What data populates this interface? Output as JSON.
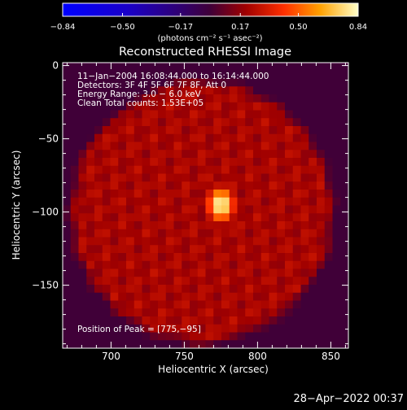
{
  "chart_data": {
    "type": "heatmap",
    "title": "Reconstructed RHESSI Image",
    "xlabel": "Heliocentric X (arcsec)",
    "ylabel": "Heliocentric Y (arcsec)",
    "xlim": [
      667,
      862
    ],
    "ylim": [
      -193,
      2
    ],
    "x_ticks": [
      700,
      750,
      800,
      850
    ],
    "y_ticks": [
      0,
      -50,
      -100,
      -150
    ],
    "x_tick_labels": [
      "700",
      "750",
      "800",
      "850"
    ],
    "y_tick_labels": [
      "0",
      "−50",
      "−100",
      "−150"
    ],
    "colorbar": {
      "range": [
        -0.84,
        0.84
      ],
      "ticks": [
        -0.84,
        -0.5,
        -0.17,
        0.17,
        0.5,
        0.84
      ],
      "tick_labels": [
        "−0.84",
        "−0.50",
        "−0.17",
        "0.17",
        "0.50",
        "0.84"
      ],
      "unit_label": "(photons cm⁻² s⁻¹ asec⁻²)"
    },
    "annotations": [
      "11−Jan−2004 16:08:44.000 to 16:14:44.000",
      "Detectors: 3F 4F 5F 6F 7F 8F, Att 0",
      "Energy Range: 3.0 − 6.0 keV",
      "Clean     Total counts: 1.53E+05"
    ],
    "peak": {
      "label": "Position of Peak = [775,−95]",
      "x": 775,
      "y": -95,
      "value": 0.84
    },
    "background": {
      "disk_center": [
        762,
        -100
      ],
      "disk_radius": 85,
      "disk_level": 0.22,
      "outside_level": -0.35
    }
  },
  "footer": {
    "timestamp": "28−Apr−2022 00:37"
  },
  "colors": {
    "background": "#000000",
    "foreground": "#ffffff"
  }
}
